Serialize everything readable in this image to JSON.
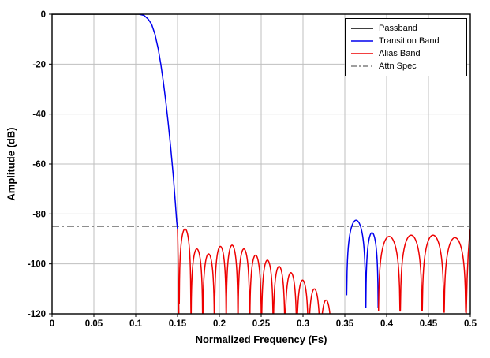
{
  "chart_data": {
    "type": "line",
    "title": "",
    "xlabel": "Normalized Frequency (Fs)",
    "ylabel": "Amplitude (dB)",
    "xlim": [
      0,
      0.5
    ],
    "ylim": [
      -120,
      0
    ],
    "xticks": [
      0,
      0.05,
      0.1,
      0.15,
      0.2,
      0.25,
      0.3,
      0.35,
      0.4,
      0.45,
      0.5
    ],
    "xtick_labels": [
      "0",
      "0.05",
      "0.1",
      "0.15",
      "0.2",
      "0.25",
      "0.3",
      "0.35",
      "0.4",
      "0.45",
      "0.5"
    ],
    "yticks": [
      0,
      -20,
      -40,
      -60,
      -80,
      -100,
      -120
    ],
    "ytick_labels": [
      "0",
      "-20",
      "-40",
      "-60",
      "-80",
      "-100",
      "-120"
    ],
    "grid": true,
    "grid_color": "#bfbfbf",
    "axis_color": "#000000",
    "legend_position": "top-right",
    "attn_spec_db": -85,
    "series": [
      {
        "name": "Passband",
        "color": "#000000",
        "linestyle": "solid",
        "segments": [
          {
            "points": [
              [
                0,
                0
              ],
              [
                0.104,
                0
              ]
            ]
          }
        ]
      },
      {
        "name": "Transition Band",
        "color": "#0000ee",
        "linestyle": "solid",
        "segments": [
          {
            "points": [
              [
                0.104,
                0
              ],
              [
                0.11,
                -0.5
              ],
              [
                0.115,
                -2
              ],
              [
                0.119,
                -4
              ],
              [
                0.123,
                -8
              ],
              [
                0.127,
                -14
              ],
              [
                0.13,
                -20
              ],
              [
                0.133,
                -27
              ],
              [
                0.136,
                -35
              ],
              [
                0.139,
                -44
              ],
              [
                0.142,
                -54
              ],
              [
                0.145,
                -65
              ],
              [
                0.1475,
                -76
              ],
              [
                0.149,
                -83
              ],
              [
                0.15,
                -86
              ]
            ]
          },
          {
            "lobes": [
              {
                "c": 0.3635,
                "p": -82.5,
                "w": 0.023
              },
              {
                "c": 0.3825,
                "p": -87.5,
                "w": 0.015
              }
            ]
          }
        ]
      },
      {
        "name": "Alias Band",
        "color": "#ee0000",
        "linestyle": "solid",
        "segments": [
          {
            "points": [
              [
                0.15,
                -86
              ],
              [
                0.1504,
                -92
              ],
              [
                0.1509,
                -101
              ],
              [
                0.1513,
                -110
              ],
              [
                0.1517,
                -122
              ]
            ]
          },
          {
            "lobes": [
              {
                "c": 0.159,
                "p": -86,
                "w": 0.0141
              },
              {
                "c": 0.1731,
                "p": -94,
                "w": 0.0141
              },
              {
                "c": 0.1871,
                "p": -96,
                "w": 0.0141
              },
              {
                "c": 0.2012,
                "p": -93,
                "w": 0.0141
              },
              {
                "c": 0.2152,
                "p": -92.5,
                "w": 0.0141
              },
              {
                "c": 0.2293,
                "p": -94,
                "w": 0.0141
              },
              {
                "c": 0.2433,
                "p": -96.5,
                "w": 0.0141
              },
              {
                "c": 0.2574,
                "p": -98.5,
                "w": 0.0141
              },
              {
                "c": 0.2714,
                "p": -101,
                "w": 0.0141
              },
              {
                "c": 0.2855,
                "p": -103.5,
                "w": 0.0141
              },
              {
                "c": 0.2995,
                "p": -106.5,
                "w": 0.0141
              },
              {
                "c": 0.3136,
                "p": -110,
                "w": 0.0141
              },
              {
                "c": 0.3276,
                "p": -114.5,
                "w": 0.0141
              }
            ]
          },
          {
            "lobes": [
              {
                "c": 0.4031,
                "p": -89,
                "w": 0.0262
              },
              {
                "c": 0.4293,
                "p": -88.5,
                "w": 0.0262
              },
              {
                "c": 0.4555,
                "p": -88.5,
                "w": 0.0262
              },
              {
                "c": 0.4817,
                "p": -89.5,
                "w": 0.0262
              }
            ]
          },
          {
            "points": [
              [
                0.495,
                -122
              ],
              [
                0.4962,
                -106
              ],
              [
                0.4975,
                -96
              ],
              [
                0.4988,
                -90
              ],
              [
                0.5,
                -86
              ]
            ]
          }
        ]
      },
      {
        "name": "Attn Spec",
        "color": "#7f7f7f",
        "linestyle": "dashdot",
        "segments": [
          {
            "points": [
              [
                0,
                -85
              ],
              [
                0.5,
                -85
              ]
            ]
          }
        ]
      }
    ]
  }
}
